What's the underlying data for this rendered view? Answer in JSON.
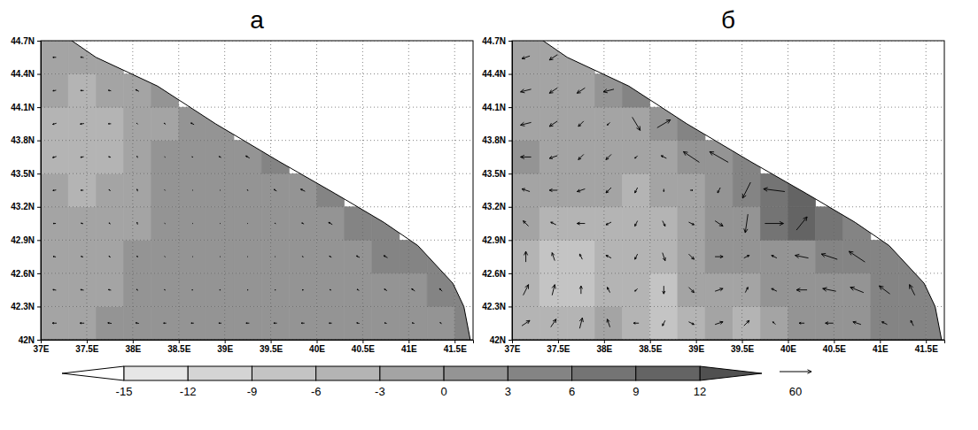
{
  "chart_data": {
    "type": "vector",
    "xlim": [
      37,
      41.7
    ],
    "ylim": [
      42,
      44.7
    ],
    "xticks": [
      {
        "value": 37,
        "label": "37E"
      },
      {
        "value": 37.5,
        "label": "37.5E"
      },
      {
        "value": 38,
        "label": "38E"
      },
      {
        "value": 38.5,
        "label": "38.5E"
      },
      {
        "value": 39,
        "label": "39E"
      },
      {
        "value": 39.5,
        "label": "39.5E"
      },
      {
        "value": 40,
        "label": "40E"
      },
      {
        "value": 40.5,
        "label": "40.5E"
      },
      {
        "value": 41,
        "label": "41E"
      },
      {
        "value": 41.5,
        "label": "41.5E"
      }
    ],
    "yticks": [
      {
        "value": 42,
        "label": "42N"
      },
      {
        "value": 42.3,
        "label": "42.3N"
      },
      {
        "value": 42.6,
        "label": "42.6N"
      },
      {
        "value": 42.9,
        "label": "42.9N"
      },
      {
        "value": 43.2,
        "label": "43.2N"
      },
      {
        "value": 43.5,
        "label": "43.5N"
      },
      {
        "value": 43.8,
        "label": "43.8N"
      },
      {
        "value": 44.1,
        "label": "44.1N"
      },
      {
        "value": 44.4,
        "label": "44.4N"
      },
      {
        "value": 44.7,
        "label": "44.7N"
      }
    ],
    "grid": true,
    "colorbar": {
      "range": [
        -15,
        12
      ],
      "ticks": [
        -15,
        -12,
        -9,
        -6,
        -3,
        0,
        3,
        6,
        9,
        12
      ],
      "colors": [
        "#ffffff",
        "#e6e6e6",
        "#d4d4d4",
        "#c4c4c4",
        "#b4b4b4",
        "#a4a4a4",
        "#949494",
        "#848484",
        "#747474",
        "#646464",
        "#505050"
      ]
    },
    "reference_vector": 60,
    "coastline": {
      "lon": [
        37.25,
        37.6,
        38.27,
        38.9,
        39.59,
        40.2,
        40.73,
        41.1,
        41.48,
        41.6,
        41.67
      ],
      "lat": [
        44.75,
        44.55,
        44.29,
        43.95,
        43.61,
        43.32,
        43.06,
        42.85,
        42.51,
        42.3,
        42.0
      ]
    },
    "x": [
      37.15,
      37.45,
      37.75,
      38.05,
      38.35,
      38.65,
      38.95,
      39.25,
      39.55,
      39.85,
      40.15,
      40.45,
      40.75,
      41.05,
      41.35,
      41.65
    ],
    "y": [
      42.15,
      42.45,
      42.75,
      43.05,
      43.35,
      43.65,
      43.95,
      44.25,
      44.55
    ],
    "panels": [
      {
        "title": "a",
        "z": [
          [
            -1,
            -1,
            0,
            1,
            1,
            1,
            1,
            1,
            1,
            1,
            2,
            2,
            2,
            2,
            2,
            3
          ],
          [
            -1,
            -1,
            -1,
            0,
            1,
            1,
            1,
            1,
            1,
            2,
            2,
            2,
            2,
            2,
            3,
            3
          ],
          [
            -2,
            -2,
            -1,
            0,
            1,
            1,
            1,
            1,
            1,
            2,
            2,
            2,
            3,
            3,
            3,
            null
          ],
          [
            -2,
            -2,
            -2,
            -1,
            1,
            1,
            1,
            1,
            2,
            2,
            2,
            3,
            3,
            null,
            null,
            null
          ],
          [
            -3,
            -4,
            -3,
            -1,
            1,
            1,
            1,
            2,
            2,
            2,
            3,
            null,
            null,
            null,
            null,
            null
          ],
          [
            -4,
            -5,
            -4,
            -2,
            0,
            1,
            1,
            2,
            3,
            null,
            null,
            null,
            null,
            null,
            null,
            null
          ],
          [
            -4,
            -5,
            -4,
            -3,
            -1,
            1,
            2,
            null,
            null,
            null,
            null,
            null,
            null,
            null,
            null,
            null
          ],
          [
            -3,
            -4,
            -3,
            -2,
            0,
            null,
            null,
            null,
            null,
            null,
            null,
            null,
            null,
            null,
            null,
            null
          ],
          [
            -2,
            -2,
            -1,
            null,
            null,
            null,
            null,
            null,
            null,
            null,
            null,
            null,
            null,
            null,
            null,
            null
          ]
        ],
        "u": [
          [
            -8,
            -8,
            -7,
            -6,
            -5,
            -5,
            -5,
            -6,
            -6,
            -6,
            -5,
            -5,
            -4,
            -4,
            -3,
            null
          ],
          [
            -6,
            -6,
            -5,
            -3,
            -2,
            -2,
            -2,
            -2,
            -2,
            -3,
            -3,
            -4,
            -5,
            -6,
            -5,
            null
          ],
          [
            -5,
            -4,
            -3,
            -1,
            -1,
            -1,
            -1,
            -1,
            -1,
            -2,
            -4,
            -6,
            -7,
            null,
            null,
            null
          ],
          [
            -5,
            -4,
            -3,
            -1,
            -1,
            -1,
            -1,
            -1,
            -2,
            -4,
            -7,
            null,
            null,
            null,
            null,
            null
          ],
          [
            -6,
            -5,
            -3,
            -1,
            -1,
            -1,
            -1,
            -2,
            -5,
            -8,
            null,
            null,
            null,
            null,
            null,
            null
          ],
          [
            -7,
            -6,
            -4,
            -1,
            -1,
            -2,
            -4,
            -7,
            null,
            null,
            null,
            null,
            null,
            null,
            null,
            null
          ],
          [
            -7,
            -7,
            -5,
            -2,
            -3,
            -6,
            null,
            null,
            null,
            null,
            null,
            null,
            null,
            null,
            null,
            null
          ],
          [
            -6,
            -6,
            -5,
            -6,
            null,
            null,
            null,
            null,
            null,
            null,
            null,
            null,
            null,
            null,
            null,
            null
          ],
          [
            -6,
            -6,
            null,
            null,
            null,
            null,
            null,
            null,
            null,
            null,
            null,
            null,
            null,
            null,
            null,
            null
          ]
        ],
        "v": [
          [
            0,
            0,
            1,
            1,
            0,
            0,
            0,
            0,
            0,
            0,
            0,
            1,
            1,
            1,
            2,
            null
          ],
          [
            1,
            1,
            1,
            2,
            1,
            0,
            0,
            0,
            0,
            0,
            1,
            2,
            3,
            4,
            5,
            null
          ],
          [
            1,
            1,
            2,
            3,
            1,
            0,
            0,
            0,
            0,
            1,
            2,
            3,
            4,
            null,
            null,
            null
          ],
          [
            0,
            1,
            2,
            4,
            1,
            0,
            0,
            0,
            1,
            2,
            4,
            null,
            null,
            null,
            null,
            null
          ],
          [
            -1,
            0,
            2,
            4,
            1,
            0,
            0,
            1,
            3,
            4,
            null,
            null,
            null,
            null,
            null,
            null
          ],
          [
            -2,
            -1,
            1,
            3,
            1,
            1,
            2,
            4,
            null,
            null,
            null,
            null,
            null,
            null,
            null,
            null
          ],
          [
            -2,
            -1,
            0,
            2,
            2,
            3,
            null,
            null,
            null,
            null,
            null,
            null,
            null,
            null,
            null,
            null
          ],
          [
            -1,
            0,
            1,
            3,
            null,
            null,
            null,
            null,
            null,
            null,
            null,
            null,
            null,
            null,
            null,
            null
          ],
          [
            0,
            1,
            null,
            null,
            null,
            null,
            null,
            null,
            null,
            null,
            null,
            null,
            null,
            null,
            null,
            null
          ]
        ]
      },
      {
        "title": "б",
        "z": [
          [
            -4,
            -6,
            -5,
            -3,
            -6,
            -7,
            -4,
            -3,
            -5,
            -2,
            0,
            1,
            2,
            3,
            3,
            3
          ],
          [
            -6,
            -8,
            -8,
            -5,
            -6,
            -7,
            -3,
            -1,
            -1,
            0,
            1,
            2,
            2,
            3,
            3,
            3
          ],
          [
            -5,
            -8,
            -8,
            -6,
            -6,
            -6,
            -2,
            0,
            1,
            1,
            2,
            3,
            3,
            3,
            3,
            null
          ],
          [
            -3,
            -5,
            -5,
            -4,
            -6,
            -5,
            -2,
            0,
            2,
            7,
            9,
            6,
            4,
            null,
            null,
            null
          ],
          [
            -1,
            -2,
            -2,
            -3,
            -4,
            -3,
            -1,
            1,
            3,
            8,
            9,
            null,
            null,
            null,
            null,
            null
          ],
          [
            0,
            -1,
            -2,
            -3,
            -3,
            -2,
            0,
            2,
            3,
            null,
            null,
            null,
            null,
            null,
            null,
            null
          ],
          [
            -1,
            -2,
            -2,
            -3,
            -1,
            2,
            4,
            null,
            null,
            null,
            null,
            null,
            null,
            null,
            null,
            null
          ],
          [
            -2,
            -2,
            -1,
            0,
            4,
            null,
            null,
            null,
            null,
            null,
            null,
            null,
            null,
            null,
            null,
            null
          ],
          [
            -3,
            -2,
            -1,
            null,
            null,
            null,
            null,
            null,
            null,
            null,
            null,
            null,
            null,
            null,
            null,
            null
          ]
        ],
        "u": [
          [
            15,
            10,
            5,
            -5,
            -10,
            -5,
            10,
            15,
            10,
            -5,
            -10,
            -15,
            -15,
            -10,
            -5,
            null
          ],
          [
            10,
            5,
            0,
            -5,
            -5,
            0,
            10,
            15,
            5,
            -10,
            -20,
            -25,
            -25,
            -20,
            -10,
            null
          ],
          [
            0,
            -5,
            -5,
            -10,
            -5,
            5,
            10,
            15,
            10,
            -10,
            -25,
            -30,
            -30,
            null,
            null,
            null
          ],
          [
            -10,
            -10,
            -15,
            -10,
            -5,
            5,
            10,
            15,
            -5,
            35,
            20,
            null,
            null,
            null,
            null,
            null
          ],
          [
            -15,
            -15,
            -15,
            -10,
            -5,
            0,
            5,
            -5,
            -15,
            -40,
            null,
            null,
            null,
            null,
            null,
            null
          ],
          [
            -20,
            -15,
            -10,
            -10,
            -5,
            -10,
            -30,
            -35,
            null,
            null,
            null,
            null,
            null,
            null,
            null,
            null
          ],
          [
            -20,
            -15,
            -10,
            -5,
            15,
            25,
            null,
            null,
            null,
            null,
            null,
            null,
            null,
            null,
            null,
            null
          ],
          [
            -20,
            -15,
            -15,
            -20,
            null,
            null,
            null,
            null,
            null,
            null,
            null,
            null,
            null,
            null,
            null,
            null
          ],
          [
            -15,
            -15,
            null,
            null,
            null,
            null,
            null,
            null,
            null,
            null,
            null,
            null,
            null,
            null,
            null,
            null
          ]
        ],
        "v": [
          [
            10,
            15,
            20,
            15,
            0,
            -10,
            -5,
            5,
            10,
            5,
            0,
            0,
            5,
            5,
            10,
            null
          ],
          [
            20,
            20,
            15,
            10,
            -5,
            -15,
            -10,
            5,
            10,
            5,
            0,
            5,
            10,
            15,
            20,
            null
          ],
          [
            20,
            15,
            10,
            5,
            -10,
            -15,
            -10,
            0,
            5,
            5,
            5,
            10,
            20,
            null,
            null,
            null
          ],
          [
            10,
            5,
            0,
            -5,
            -10,
            -10,
            -5,
            -10,
            -35,
            0,
            25,
            null,
            null,
            null,
            null,
            null
          ],
          [
            5,
            0,
            -5,
            -10,
            -10,
            -5,
            0,
            -10,
            -30,
            5,
            null,
            null,
            null,
            null,
            null,
            null
          ],
          [
            0,
            -5,
            -10,
            -10,
            -5,
            5,
            20,
            20,
            null,
            null,
            null,
            null,
            null,
            null,
            null,
            null
          ],
          [
            -5,
            -10,
            -10,
            -5,
            -25,
            15,
            null,
            null,
            null,
            null,
            null,
            null,
            null,
            null,
            null,
            null
          ],
          [
            -5,
            -10,
            -10,
            -5,
            null,
            null,
            null,
            null,
            null,
            null,
            null,
            null,
            null,
            null,
            null,
            null
          ],
          [
            -5,
            -10,
            null,
            null,
            null,
            null,
            null,
            null,
            null,
            null,
            null,
            null,
            null,
            null,
            null,
            null
          ]
        ]
      }
    ]
  }
}
